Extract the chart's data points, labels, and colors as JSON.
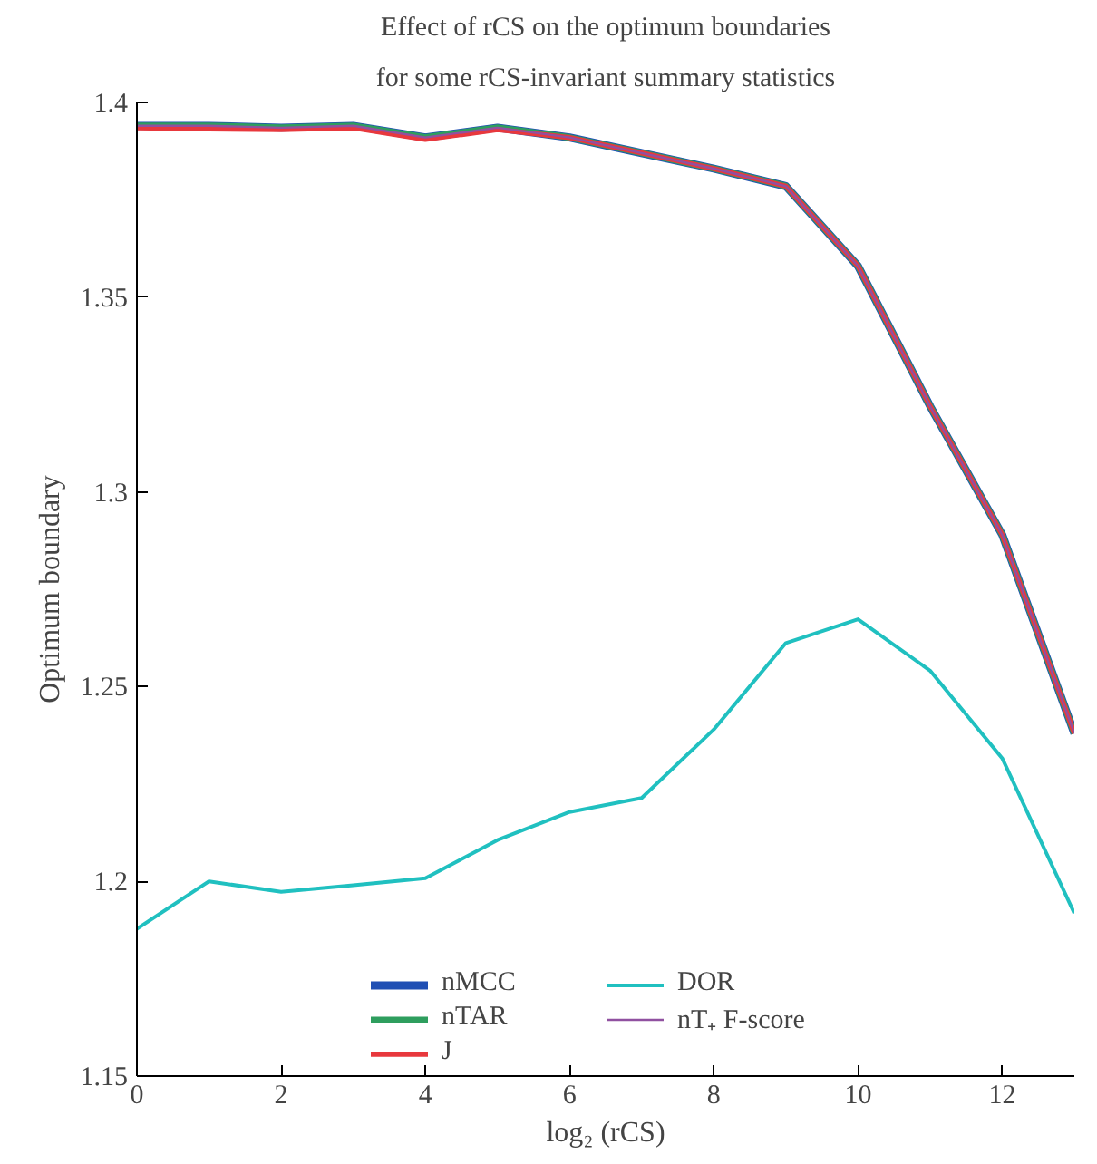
{
  "chart_data": {
    "type": "line",
    "title": "Effect of rCS on the optimum boundaries",
    "subtitle": "for some rCS-invariant summary statistics",
    "xlabel": "log₂ (rCS)",
    "ylabel": "Optimum boundary",
    "x": [
      0,
      1,
      2,
      3,
      4,
      5,
      6,
      7,
      8,
      9,
      10,
      11,
      12,
      13
    ],
    "series": [
      {
        "name": "nMCC",
        "color": "#1f4fb4",
        "values": [
          1.394,
          1.394,
          1.3935,
          1.394,
          1.391,
          1.3935,
          1.391,
          1.387,
          1.383,
          1.3785,
          1.358,
          1.322,
          1.289,
          1.238
        ]
      },
      {
        "name": "nTAR",
        "color": "#2e9e5e",
        "values": [
          1.394,
          1.394,
          1.3935,
          1.394,
          1.391,
          1.3935,
          1.391,
          1.387,
          1.383,
          1.3785,
          1.358,
          1.322,
          1.289,
          1.238
        ]
      },
      {
        "name": "J",
        "color": "#e8383d",
        "values": [
          1.3935,
          1.3932,
          1.393,
          1.3935,
          1.3905,
          1.393,
          1.391,
          1.387,
          1.383,
          1.3785,
          1.358,
          1.322,
          1.289,
          1.238
        ]
      },
      {
        "name": "DOR",
        "color": "#20c0c0",
        "values": [
          1.1878,
          1.2,
          1.1973,
          1.199,
          1.2008,
          1.2106,
          1.2178,
          1.2214,
          1.239,
          1.2612,
          1.2673,
          1.2541,
          1.2316,
          1.1918
        ]
      },
      {
        "name": "nT₊ F-score",
        "color": "#9050a0",
        "values": [
          1.394,
          1.394,
          1.3935,
          1.394,
          1.391,
          1.3935,
          1.391,
          1.387,
          1.383,
          1.3785,
          1.358,
          1.322,
          1.289,
          1.238
        ]
      }
    ],
    "xlim": [
      0,
      13
    ],
    "xticks": [
      0,
      2,
      4,
      6,
      8,
      10,
      12
    ],
    "ylim": [
      1.15,
      1.4
    ],
    "yticks": [
      1.15,
      1.2,
      1.25,
      1.3,
      1.35,
      1.4
    ],
    "grid": false,
    "legend": "bottom",
    "line_style": "solid",
    "marker": "none"
  }
}
